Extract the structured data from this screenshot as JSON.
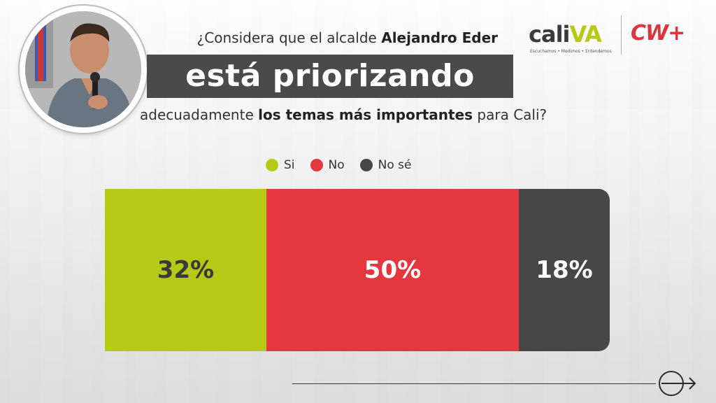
{
  "header": {
    "question_prefix": "¿Considera que el alcalde",
    "question_name": "Alejandro Eder",
    "banner": "está priorizando",
    "question_mid": "adecuadamente",
    "question_bold": "los temas más importantes",
    "question_suffix": "para Cali?"
  },
  "logos": {
    "cali_word": "cali",
    "cali_va": "VA",
    "cali_tagline": "Escuchamos • Medimos • Entendemos",
    "cw": "CW+"
  },
  "colors": {
    "si": "#b5c916",
    "no": "#e5373f",
    "nose": "#474747",
    "banner": "#4a4a4a"
  },
  "chart_data": {
    "type": "bar",
    "orientation": "horizontal-stacked",
    "categories": [
      "Si",
      "No",
      "No sé"
    ],
    "values": [
      32,
      50,
      18
    ],
    "value_labels": [
      "32%",
      "50%",
      "18%"
    ],
    "unit": "%",
    "legend_position": "top-center"
  }
}
